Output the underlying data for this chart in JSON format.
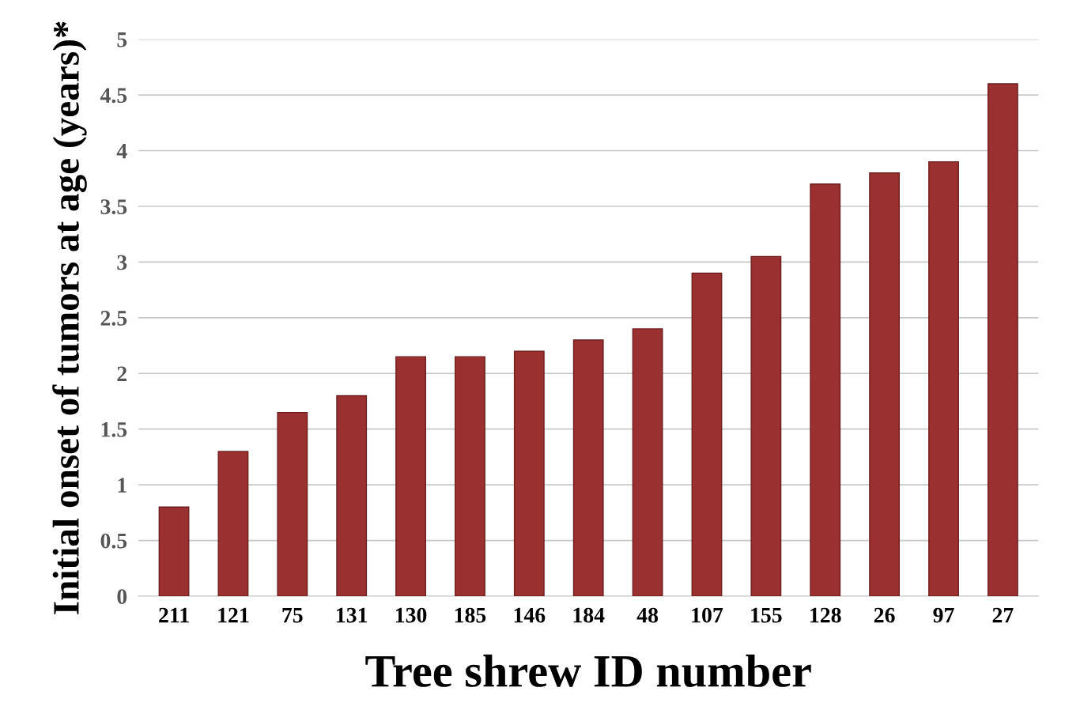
{
  "chart_data": {
    "type": "bar",
    "xlabel": "Tree shrew ID number",
    "ylabel": "Initial onset of tumors at age (years)*",
    "categories": [
      "211",
      "121",
      "75",
      "131",
      "130",
      "185",
      "146",
      "184",
      "48",
      "107",
      "155",
      "128",
      "26",
      "97",
      "27"
    ],
    "values": [
      0.8,
      1.3,
      1.65,
      1.8,
      2.15,
      2.15,
      2.2,
      2.3,
      2.4,
      2.9,
      3.05,
      3.7,
      3.8,
      3.9,
      4.6
    ],
    "color": "#9b3030",
    "ylim": [
      0,
      5
    ],
    "yticks": [
      0,
      0.5,
      1,
      1.5,
      2,
      2.5,
      3,
      3.5,
      4,
      4.5,
      5
    ],
    "grid": "y",
    "legend": false
  }
}
